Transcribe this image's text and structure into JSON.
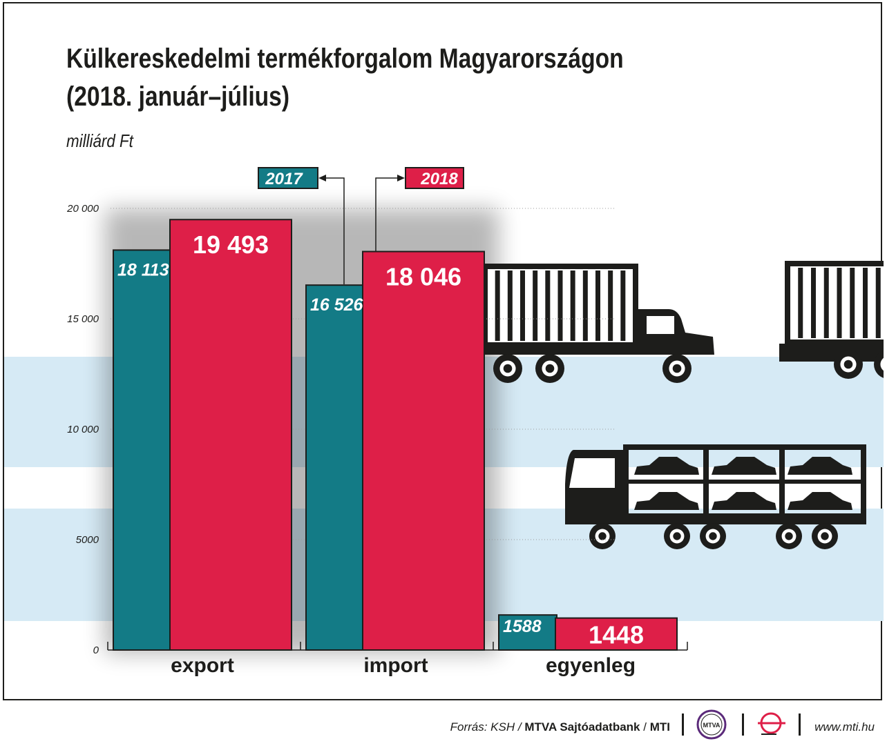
{
  "title_line1": "Külkereskedelmi termékforgalom Magyarországon",
  "title_line2": "(2018. január–július)",
  "unit": "milliárd Ft",
  "legend": {
    "y2017": "2017",
    "y2018": "2018"
  },
  "colors": {
    "y2017": "#137b86",
    "y2018": "#de1f48",
    "band": "#d6eaf5",
    "dark": "#1d1d1b"
  },
  "chart_data": {
    "type": "bar",
    "title": "Külkereskedelmi termékforgalom Magyarországon (2018. január–július)",
    "ylabel": "milliárd Ft",
    "categories": [
      "export",
      "import",
      "egyenleg"
    ],
    "series": [
      {
        "name": "2017",
        "values": [
          18113,
          16526,
          1588
        ],
        "labels": [
          "18 113",
          "16 526",
          "1588"
        ]
      },
      {
        "name": "2018",
        "values": [
          19493,
          18046,
          1448
        ],
        "labels": [
          "19 493",
          "18 046",
          "1448"
        ]
      }
    ],
    "yticks": [
      0,
      5000,
      10000,
      15000,
      20000
    ],
    "ytick_labels": [
      "0",
      "5000",
      "10 000",
      "15 000",
      "20 000"
    ],
    "ylim": [
      0,
      20000
    ],
    "grid": false,
    "legend_position": "top-center"
  },
  "footer": {
    "source_italic": "Forrás: KSH /",
    "source_bold": "MTVA Sajtóadatbank",
    "source_sep": "/",
    "source_mti": "MTI",
    "logo_text": "MTVA",
    "url": "www.mti.hu"
  }
}
